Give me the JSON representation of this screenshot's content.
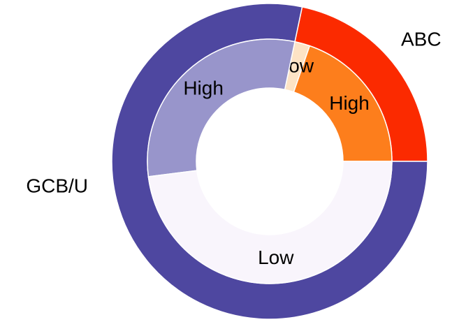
{
  "chart_data": {
    "type": "donut",
    "outer": {
      "labels": [
        "ABC",
        "GCB/U"
      ],
      "values": [
        21.7,
        78.3
      ],
      "colors": [
        "#fb2a00",
        "#4e47a0"
      ]
    },
    "inner": {
      "labels": [
        "High",
        "Low",
        "High",
        "Low"
      ],
      "values": [
        19.7,
        2.0,
        30.3,
        48.0
      ],
      "colors": [
        "#fd7e1c",
        "#fde3c5",
        "#9895cb",
        "#f9f5fc"
      ]
    }
  }
}
